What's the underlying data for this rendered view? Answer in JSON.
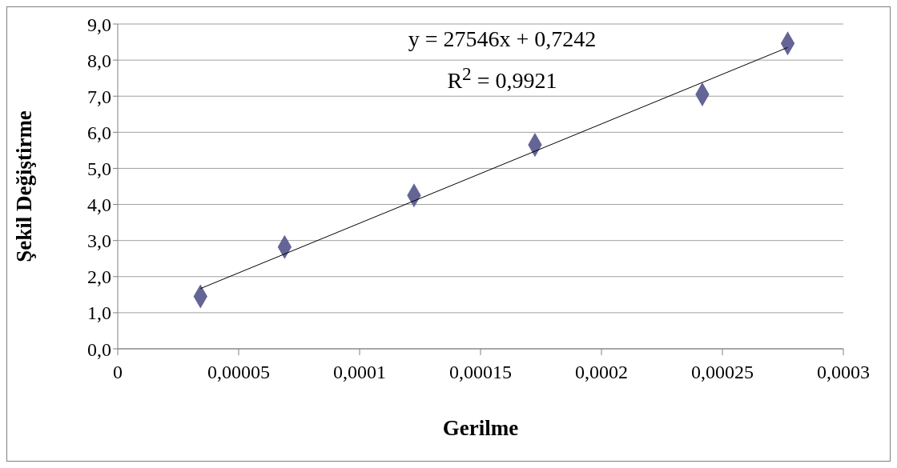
{
  "chart_data": {
    "type": "scatter",
    "xlabel": "Gerilme",
    "ylabel": "Şekil Değiştirme",
    "annotations": [
      "y = 27546x + 0,7242",
      "R$^{2}$ = 0,9921"
    ],
    "series": [
      {
        "color": "#646496",
        "marker": "diamond",
        "x": [
          3.42e-05,
          6.9e-05,
          0.0001225,
          0.0001725,
          0.0002417,
          0.000277
        ],
        "values": [
          1.45,
          2.82,
          4.25,
          5.65,
          7.05,
          8.46
        ]
      },
      {
        "type": "line",
        "color": "#000000",
        "marker": "none",
        "x": [
          3.42e-05,
          0.000277
        ],
        "values": [
          1.67,
          8.35
        ]
      }
    ],
    "xlim": [
      0,
      0.0003
    ],
    "xticks": [
      0,
      {
        "value": 5e-05,
        "label": "0,00005"
      },
      {
        "value": 0.0001,
        "label": "0,0001"
      },
      {
        "value": 0.00015,
        "label": "0,00015"
      },
      {
        "value": 0.0002,
        "label": "0,0002"
      },
      {
        "value": 0.00025,
        "label": "0,00025"
      },
      {
        "value": 0.0003,
        "label": "0,0003"
      }
    ],
    "ylim": [
      0,
      9
    ],
    "yticks": [
      {
        "value": 0,
        "label": "0,0"
      },
      {
        "value": 1,
        "label": "1,0"
      },
      {
        "value": 2,
        "label": "2,0"
      },
      {
        "value": 3,
        "label": "3,0"
      },
      {
        "value": 4,
        "label": "4,0"
      },
      {
        "value": 5,
        "label": "5,0"
      },
      {
        "value": 6,
        "label": "6,0"
      },
      {
        "value": 7,
        "label": "7,0"
      },
      {
        "value": 8,
        "label": "8,0"
      },
      {
        "value": 9,
        "label": "9,0"
      }
    ],
    "grid": "y"
  }
}
